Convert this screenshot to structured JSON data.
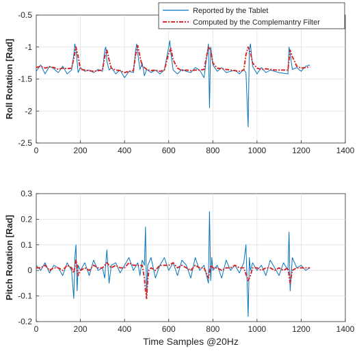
{
  "chart_data": [
    {
      "type": "line",
      "title": "",
      "xlabel": "",
      "ylabel": "Roll Rotation [Rad]",
      "xlim": [
        0,
        1400
      ],
      "ylim": [
        -2.5,
        -0.5
      ],
      "xticks": [
        "0",
        "200",
        "400",
        "600",
        "800",
        "1000",
        "1200",
        "1400"
      ],
      "yticks": [
        "-2.5",
        "-2",
        "-1.5",
        "-1",
        "-0.5"
      ],
      "grid": true,
      "legend": "top-right",
      "series": [
        {
          "name": "Reported by the Tablet",
          "color": "#0072BD",
          "style": "solid",
          "x": [
            0,
            20,
            40,
            60,
            80,
            100,
            120,
            140,
            160,
            170,
            175,
            180,
            190,
            200,
            220,
            240,
            260,
            280,
            300,
            310,
            315,
            320,
            330,
            340,
            360,
            380,
            400,
            420,
            440,
            450,
            455,
            460,
            470,
            480,
            490,
            500,
            520,
            540,
            560,
            580,
            600,
            605,
            610,
            620,
            640,
            660,
            680,
            700,
            720,
            740,
            760,
            780,
            785,
            790,
            800,
            820,
            840,
            860,
            880,
            900,
            920,
            940,
            950,
            960,
            965,
            970,
            980,
            1000,
            1020,
            1040,
            1060,
            1080,
            1100,
            1140,
            1145,
            1150,
            1160,
            1180,
            1200,
            1220,
            1240
          ],
          "y": [
            -1.38,
            -1.28,
            -1.42,
            -1.3,
            -1.34,
            -1.4,
            -1.3,
            -1.42,
            -1.36,
            -1.12,
            -0.95,
            -1.05,
            -1.4,
            -1.32,
            -1.38,
            -1.36,
            -1.4,
            -1.35,
            -1.38,
            -1.05,
            -1.0,
            -1.22,
            -1.36,
            -1.32,
            -1.42,
            -1.36,
            -1.48,
            -1.38,
            -1.4,
            -1.05,
            -0.95,
            -1.1,
            -1.35,
            -1.25,
            -1.45,
            -1.35,
            -1.4,
            -1.36,
            -1.42,
            -1.36,
            -1.0,
            -0.9,
            -1.1,
            -1.36,
            -1.42,
            -1.35,
            -1.38,
            -1.4,
            -1.32,
            -1.36,
            -1.48,
            -0.95,
            -1.95,
            -1.0,
            -1.28,
            -1.38,
            -1.32,
            -1.4,
            -1.38,
            -1.36,
            -1.42,
            -1.35,
            -1.4,
            -2.25,
            -1.05,
            -0.95,
            -1.3,
            -1.42,
            -1.32,
            -1.4,
            -1.36,
            -1.38,
            -1.4,
            -1.42,
            -1.0,
            -1.1,
            -1.35,
            -1.32,
            -1.38,
            -1.3,
            -1.28
          ]
        },
        {
          "name": "Computed by the Complemantry Filter",
          "color": "#D62728",
          "style": "dashdot",
          "x": [
            0,
            20,
            40,
            60,
            80,
            100,
            120,
            140,
            160,
            170,
            180,
            190,
            200,
            220,
            240,
            260,
            280,
            300,
            310,
            320,
            330,
            340,
            360,
            380,
            400,
            420,
            440,
            450,
            460,
            470,
            480,
            490,
            500,
            520,
            540,
            560,
            580,
            600,
            610,
            620,
            640,
            660,
            680,
            700,
            720,
            740,
            760,
            780,
            790,
            800,
            820,
            840,
            860,
            880,
            900,
            920,
            940,
            950,
            960,
            970,
            980,
            1000,
            1020,
            1040,
            1060,
            1080,
            1100,
            1140,
            1150,
            1160,
            1180,
            1200,
            1220,
            1240
          ],
          "y": [
            -1.32,
            -1.3,
            -1.33,
            -1.31,
            -1.32,
            -1.35,
            -1.33,
            -1.34,
            -1.33,
            -1.18,
            -1.0,
            -1.15,
            -1.35,
            -1.36,
            -1.37,
            -1.38,
            -1.37,
            -1.36,
            -1.15,
            -1.05,
            -1.2,
            -1.33,
            -1.36,
            -1.37,
            -1.4,
            -1.38,
            -1.37,
            -1.12,
            -0.98,
            -1.15,
            -1.3,
            -1.32,
            -1.35,
            -1.37,
            -1.36,
            -1.38,
            -1.36,
            -1.1,
            -1.02,
            -1.2,
            -1.33,
            -1.37,
            -1.36,
            -1.37,
            -1.36,
            -1.36,
            -1.35,
            -1.0,
            -1.05,
            -1.25,
            -1.33,
            -1.34,
            -1.35,
            -1.36,
            -1.37,
            -1.38,
            -1.36,
            -1.12,
            -1.0,
            -1.08,
            -1.25,
            -1.33,
            -1.35,
            -1.34,
            -1.35,
            -1.36,
            -1.36,
            -1.36,
            -1.05,
            -1.15,
            -1.3,
            -1.33,
            -1.32,
            -1.31
          ]
        }
      ]
    },
    {
      "type": "line",
      "title": "",
      "xlabel": "Time Samples @20Hz",
      "ylabel": "Pitch Rotation [Rad]",
      "xlim": [
        0,
        1400
      ],
      "ylim": [
        -0.2,
        0.3
      ],
      "xticks": [
        "0",
        "200",
        "400",
        "600",
        "800",
        "1000",
        "1200",
        "1400"
      ],
      "yticks": [
        "-0.2",
        "-0.1",
        "0",
        "0.1",
        "0.2",
        "0.3"
      ],
      "grid": true,
      "series": [
        {
          "name": "Reported by the Tablet",
          "color": "#0072BD",
          "style": "solid",
          "x": [
            0,
            20,
            40,
            60,
            80,
            100,
            120,
            140,
            160,
            170,
            175,
            180,
            185,
            190,
            200,
            220,
            240,
            260,
            280,
            300,
            310,
            320,
            330,
            340,
            360,
            380,
            400,
            420,
            440,
            460,
            470,
            480,
            490,
            495,
            500,
            505,
            510,
            520,
            540,
            560,
            580,
            600,
            620,
            640,
            660,
            680,
            700,
            720,
            740,
            760,
            780,
            785,
            790,
            795,
            800,
            820,
            840,
            860,
            880,
            900,
            920,
            940,
            950,
            960,
            965,
            970,
            980,
            1000,
            1020,
            1040,
            1060,
            1080,
            1100,
            1120,
            1140,
            1145,
            1150,
            1160,
            1180,
            1200,
            1220,
            1240
          ],
          "y": [
            0.02,
            0.0,
            0.03,
            -0.01,
            0.02,
            0.01,
            -0.02,
            0.03,
            0.0,
            -0.11,
            0.05,
            0.1,
            -0.08,
            0.02,
            0.0,
            0.03,
            -0.02,
            0.04,
            0.0,
            0.01,
            -0.03,
            0.08,
            -0.05,
            0.02,
            0.03,
            -0.01,
            0.02,
            0.05,
            0.0,
            0.03,
            -0.02,
            0.04,
            0.02,
            0.17,
            -0.1,
            0.02,
            0.03,
            0.05,
            -0.03,
            0.02,
            0.05,
            0.0,
            0.03,
            -0.02,
            0.04,
            0.02,
            -0.03,
            0.05,
            0.0,
            0.02,
            -0.05,
            0.23,
            -0.04,
            0.05,
            0.0,
            0.02,
            -0.03,
            0.04,
            0.0,
            0.02,
            -0.01,
            0.03,
            0.1,
            -0.18,
            0.05,
            0.0,
            0.03,
            0.0,
            0.02,
            -0.02,
            0.04,
            0.01,
            -0.02,
            0.03,
            0.0,
            0.15,
            -0.08,
            0.05,
            0.01,
            0.02,
            0.0,
            0.01
          ]
        },
        {
          "name": "Computed by the Complemantry Filter",
          "color": "#D62728",
          "style": "dashdot",
          "x": [
            0,
            20,
            40,
            60,
            80,
            100,
            120,
            140,
            160,
            170,
            180,
            185,
            190,
            200,
            220,
            240,
            260,
            280,
            300,
            320,
            340,
            360,
            380,
            400,
            420,
            440,
            460,
            480,
            490,
            495,
            500,
            505,
            510,
            520,
            540,
            560,
            580,
            600,
            620,
            640,
            660,
            680,
            700,
            720,
            740,
            760,
            780,
            790,
            800,
            820,
            840,
            860,
            880,
            900,
            920,
            940,
            960,
            970,
            980,
            1000,
            1020,
            1040,
            1060,
            1080,
            1100,
            1120,
            1140,
            1150,
            1160,
            1180,
            1200,
            1220,
            1240
          ],
          "y": [
            0.01,
            0.01,
            0.02,
            0.0,
            0.01,
            0.01,
            0.0,
            0.02,
            0.01,
            -0.01,
            0.04,
            0.02,
            -0.02,
            0.0,
            0.01,
            0.0,
            0.02,
            0.01,
            0.01,
            0.03,
            0.01,
            0.02,
            0.01,
            0.01,
            0.03,
            0.02,
            0.02,
            0.02,
            -0.03,
            -0.08,
            -0.11,
            -0.04,
            0.0,
            0.01,
            0.0,
            0.02,
            0.02,
            0.02,
            0.03,
            0.01,
            0.02,
            0.01,
            0.0,
            0.02,
            0.01,
            0.01,
            -0.03,
            0.02,
            0.01,
            0.01,
            0.0,
            0.01,
            0.01,
            0.02,
            0.01,
            0.01,
            -0.04,
            -0.02,
            0.01,
            0.01,
            0.0,
            0.01,
            0.01,
            0.0,
            0.01,
            0.0,
            0.01,
            -0.05,
            0.0,
            0.01,
            0.01,
            0.01,
            0.01
          ]
        }
      ]
    }
  ]
}
